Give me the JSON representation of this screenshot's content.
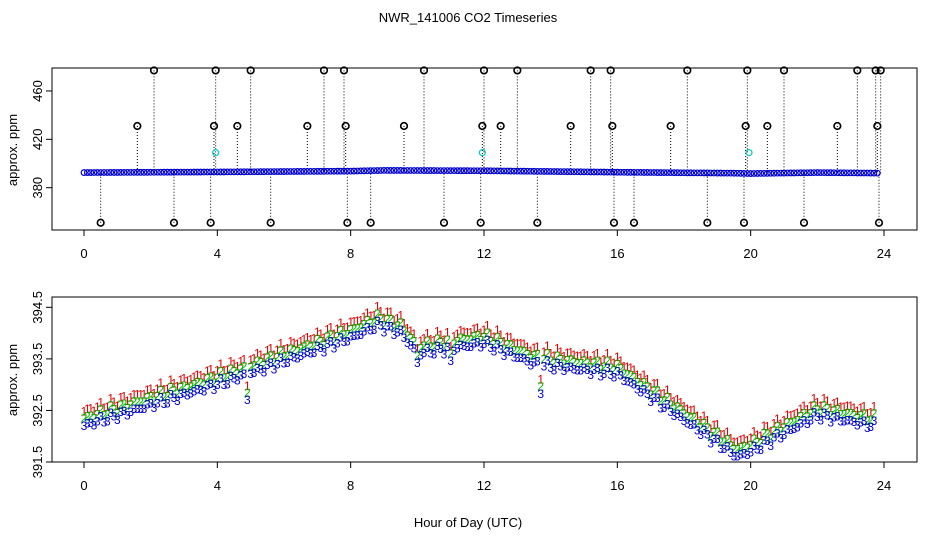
{
  "title": "NWR_141006  CO2 Timeseries",
  "xlabel": "Hour of Day (UTC)",
  "colors": {
    "mark_black": "#000000",
    "mark_blue": "#0000cc",
    "mark_cyan": "#00c8c8",
    "mark_red": "#dd0000",
    "mark_green": "#00bb00"
  },
  "chart_data": [
    {
      "type": "scatter",
      "ylabel": "approx. ppm",
      "xlim": [
        0,
        24
      ],
      "ylim": [
        345,
        479
      ],
      "x_ticks": [
        0,
        4,
        8,
        12,
        16,
        20,
        24
      ],
      "y_ticks": [
        380,
        420,
        460
      ],
      "drop_lines": true,
      "baseline_series": {
        "color": "#0000cc",
        "symbol": "o",
        "x_start": 0.0,
        "x_end": 23.8,
        "x_step": 0.1,
        "knots_x": [
          0,
          4,
          8,
          9,
          12,
          16,
          19.5,
          20,
          22,
          24
        ],
        "knots_y": [
          392.5,
          393.0,
          393.7,
          394.3,
          394.0,
          392.8,
          392.0,
          391.7,
          392.5,
          392.0
        ]
      },
      "black_points": [
        {
          "x": 0.5,
          "y": 351
        },
        {
          "x": 1.6,
          "y": 431
        },
        {
          "x": 2.1,
          "y": 477
        },
        {
          "x": 2.7,
          "y": 351
        },
        {
          "x": 3.8,
          "y": 351
        },
        {
          "x": 3.9,
          "y": 431
        },
        {
          "x": 3.95,
          "y": 477
        },
        {
          "x": 4.6,
          "y": 431
        },
        {
          "x": 5.0,
          "y": 477
        },
        {
          "x": 5.6,
          "y": 351
        },
        {
          "x": 6.7,
          "y": 431
        },
        {
          "x": 7.2,
          "y": 477
        },
        {
          "x": 7.8,
          "y": 477
        },
        {
          "x": 7.85,
          "y": 431
        },
        {
          "x": 7.9,
          "y": 351
        },
        {
          "x": 8.6,
          "y": 351
        },
        {
          "x": 9.6,
          "y": 431
        },
        {
          "x": 10.2,
          "y": 477
        },
        {
          "x": 10.8,
          "y": 351
        },
        {
          "x": 11.9,
          "y": 351
        },
        {
          "x": 11.95,
          "y": 431
        },
        {
          "x": 12.0,
          "y": 477
        },
        {
          "x": 12.5,
          "y": 431
        },
        {
          "x": 13.0,
          "y": 477
        },
        {
          "x": 13.6,
          "y": 351
        },
        {
          "x": 14.6,
          "y": 431
        },
        {
          "x": 15.2,
          "y": 477
        },
        {
          "x": 15.8,
          "y": 477
        },
        {
          "x": 15.85,
          "y": 431
        },
        {
          "x": 15.9,
          "y": 351
        },
        {
          "x": 16.5,
          "y": 351
        },
        {
          "x": 17.6,
          "y": 431
        },
        {
          "x": 18.1,
          "y": 477
        },
        {
          "x": 18.7,
          "y": 351
        },
        {
          "x": 19.8,
          "y": 351
        },
        {
          "x": 19.85,
          "y": 431
        },
        {
          "x": 19.9,
          "y": 477
        },
        {
          "x": 20.5,
          "y": 431
        },
        {
          "x": 21.0,
          "y": 477
        },
        {
          "x": 21.6,
          "y": 351
        },
        {
          "x": 22.6,
          "y": 431
        },
        {
          "x": 23.2,
          "y": 477
        },
        {
          "x": 23.75,
          "y": 477
        },
        {
          "x": 23.8,
          "y": 431
        },
        {
          "x": 23.85,
          "y": 351
        },
        {
          "x": 23.9,
          "y": 477
        }
      ],
      "cyan_points": [
        {
          "x": 3.95,
          "y": 409
        },
        {
          "x": 11.95,
          "y": 409
        },
        {
          "x": 19.95,
          "y": 409
        }
      ]
    },
    {
      "type": "scatter",
      "ylabel": "approx. ppm",
      "xlim": [
        0,
        24
      ],
      "ylim": [
        391.5,
        394.7
      ],
      "x_ticks": [
        0,
        4,
        8,
        12,
        16,
        20,
        24
      ],
      "y_ticks": [
        391.5,
        392.5,
        393.5,
        394.5
      ],
      "series": [
        {
          "label_glyph": "1",
          "color": "#dd0000",
          "offset": 0.28
        },
        {
          "label_glyph": "2",
          "color": "#00bb00",
          "offset": 0.14
        },
        {
          "label_glyph": "3",
          "color": "#0000cc",
          "offset": 0.0
        }
      ],
      "x_start": 0.0,
      "x_end": 23.7,
      "x_step": 0.1,
      "knots_x": [
        0,
        4,
        8,
        8.8,
        9.5,
        10,
        12,
        13.5,
        16,
        19.6,
        20,
        22,
        23.7
      ],
      "knots_y": [
        392.2,
        393.0,
        393.9,
        394.15,
        394.0,
        393.6,
        393.8,
        393.4,
        393.2,
        391.6,
        391.7,
        392.4,
        392.2
      ],
      "dips": [
        {
          "x": 4.9,
          "y": 392.7
        },
        {
          "x": 10.0,
          "y": 393.4
        },
        {
          "x": 11.0,
          "y": 393.4
        },
        {
          "x": 13.7,
          "y": 392.9
        }
      ]
    }
  ]
}
